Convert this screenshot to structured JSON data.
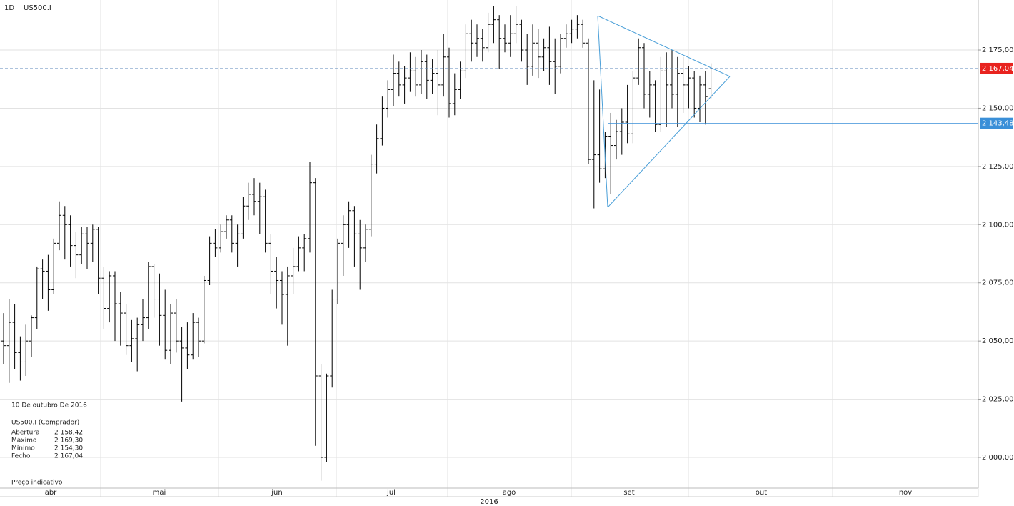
{
  "chart_data": {
    "type": "ohlc",
    "period": "1D",
    "symbol": "US500.I",
    "ylim": [
      1986.8,
      2196.5
    ],
    "yticks": [
      {
        "value": 2000,
        "label": "2 000,00"
      },
      {
        "value": 2025,
        "label": "2 025,00"
      },
      {
        "value": 2050,
        "label": "2 050,00"
      },
      {
        "value": 2075,
        "label": "2 075,00"
      },
      {
        "value": 2100,
        "label": "2 100,00"
      },
      {
        "value": 2125,
        "label": "2 125,00"
      },
      {
        "value": 2150,
        "label": "2 150,00"
      },
      {
        "value": 2175,
        "label": "2 175,00"
      }
    ],
    "grid": true,
    "months": [
      "abr",
      "mai",
      "jun",
      "jul",
      "ago",
      "set",
      "out",
      "nov"
    ],
    "year": "2016",
    "color": "#000000",
    "current_price": {
      "value": 2167.04,
      "label": "2 167,04",
      "color": "#e8231f"
    },
    "level_line": {
      "value": 2143.48,
      "label": "2 143,48",
      "color": "#3a8fd8"
    },
    "ohlc": [
      [
        2050,
        2062,
        2040,
        2048
      ],
      [
        2048,
        2068,
        2032,
        2058
      ],
      [
        2058,
        2066,
        2038,
        2045
      ],
      [
        2045,
        2052,
        2033,
        2041
      ],
      [
        2041,
        2057,
        2035,
        2050
      ],
      [
        2050,
        2061,
        2043,
        2060
      ],
      [
        2060,
        2082,
        2055,
        2081
      ],
      [
        2081,
        2085,
        2068,
        2080
      ],
      [
        2080,
        2087,
        2063,
        2072
      ],
      [
        2072,
        2094,
        2070,
        2092
      ],
      [
        2092,
        2110,
        2089,
        2104
      ],
      [
        2104,
        2108,
        2085,
        2100
      ],
      [
        2100,
        2104,
        2082,
        2091
      ],
      [
        2091,
        2097,
        2077,
        2087
      ],
      [
        2087,
        2099,
        2083,
        2096
      ],
      [
        2096,
        2099,
        2081,
        2092
      ],
      [
        2092,
        2100,
        2084,
        2098
      ],
      [
        2098,
        2099,
        2070,
        2077
      ],
      [
        2077,
        2082,
        2055,
        2064
      ],
      [
        2064,
        2080,
        2058,
        2078
      ],
      [
        2078,
        2080,
        2050,
        2066
      ],
      [
        2066,
        2071,
        2048,
        2062
      ],
      [
        2062,
        2066,
        2044,
        2048
      ],
      [
        2048,
        2059,
        2041,
        2051
      ],
      [
        2051,
        2060,
        2037,
        2057
      ],
      [
        2057,
        2068,
        2050,
        2060
      ],
      [
        2060,
        2084,
        2055,
        2082
      ],
      [
        2082,
        2083,
        2060,
        2068
      ],
      [
        2068,
        2079,
        2048,
        2061
      ],
      [
        2061,
        2072,
        2042,
        2046
      ],
      [
        2046,
        2066,
        2040,
        2062
      ],
      [
        2062,
        2068,
        2045,
        2050
      ],
      [
        2050,
        2056,
        2024,
        2047
      ],
      [
        2047,
        2058,
        2038,
        2044
      ],
      [
        2044,
        2062,
        2042,
        2058
      ],
      [
        2058,
        2060,
        2043,
        2050
      ],
      [
        2050,
        2078,
        2049,
        2076
      ],
      [
        2076,
        2095,
        2074,
        2092
      ],
      [
        2092,
        2098,
        2086,
        2090
      ],
      [
        2090,
        2100,
        2088,
        2097
      ],
      [
        2097,
        2104,
        2094,
        2102
      ],
      [
        2102,
        2104,
        2088,
        2092
      ],
      [
        2092,
        2100,
        2082,
        2096
      ],
      [
        2096,
        2112,
        2094,
        2108
      ],
      [
        2108,
        2118,
        2102,
        2113
      ],
      [
        2113,
        2120,
        2104,
        2110
      ],
      [
        2110,
        2118,
        2096,
        2112
      ],
      [
        2112,
        2115,
        2088,
        2092
      ],
      [
        2092,
        2096,
        2070,
        2080
      ],
      [
        2080,
        2086,
        2064,
        2076
      ],
      [
        2076,
        2080,
        2057,
        2070
      ],
      [
        2070,
        2082,
        2048,
        2078
      ],
      [
        2078,
        2090,
        2070,
        2082
      ],
      [
        2082,
        2095,
        2080,
        2090
      ],
      [
        2090,
        2096,
        2080,
        2094
      ],
      [
        2094,
        2127,
        2088,
        2118
      ],
      [
        2118,
        2120,
        2005,
        2035
      ],
      [
        2035,
        2040,
        1990,
        2000
      ],
      [
        2000,
        2036,
        1998,
        2035
      ],
      [
        2035,
        2072,
        2030,
        2068
      ],
      [
        2068,
        2094,
        2066,
        2092
      ],
      [
        2092,
        2104,
        2078,
        2100
      ],
      [
        2100,
        2110,
        2090,
        2106
      ],
      [
        2106,
        2108,
        2082,
        2096
      ],
      [
        2096,
        2102,
        2072,
        2090
      ],
      [
        2090,
        2100,
        2084,
        2098
      ],
      [
        2098,
        2130,
        2095,
        2126
      ],
      [
        2126,
        2143,
        2122,
        2137
      ],
      [
        2137,
        2155,
        2134,
        2150
      ],
      [
        2150,
        2162,
        2146,
        2158
      ],
      [
        2158,
        2173,
        2151,
        2165
      ],
      [
        2165,
        2170,
        2155,
        2160
      ],
      [
        2160,
        2168,
        2152,
        2163
      ],
      [
        2163,
        2174,
        2157,
        2166
      ],
      [
        2166,
        2172,
        2155,
        2160
      ],
      [
        2160,
        2175,
        2156,
        2170
      ],
      [
        2170,
        2173,
        2154,
        2162
      ],
      [
        2162,
        2171,
        2156,
        2165
      ],
      [
        2165,
        2175,
        2147,
        2160
      ],
      [
        2160,
        2182,
        2155,
        2172
      ],
      [
        2172,
        2176,
        2146,
        2152
      ],
      [
        2152,
        2165,
        2147,
        2158
      ],
      [
        2158,
        2170,
        2154,
        2166
      ],
      [
        2166,
        2186,
        2163,
        2182
      ],
      [
        2182,
        2188,
        2170,
        2178
      ],
      [
        2178,
        2186,
        2172,
        2180
      ],
      [
        2180,
        2184,
        2170,
        2176
      ],
      [
        2176,
        2191,
        2174,
        2186
      ],
      [
        2186,
        2194,
        2178,
        2188
      ],
      [
        2188,
        2190,
        2167,
        2180
      ],
      [
        2180,
        2186,
        2174,
        2178
      ],
      [
        2178,
        2190,
        2172,
        2182
      ],
      [
        2182,
        2194,
        2178,
        2186
      ],
      [
        2186,
        2188,
        2170,
        2175
      ],
      [
        2175,
        2182,
        2160,
        2168
      ],
      [
        2168,
        2186,
        2164,
        2178
      ],
      [
        2178,
        2184,
        2163,
        2172
      ],
      [
        2172,
        2180,
        2166,
        2176
      ],
      [
        2176,
        2185,
        2160,
        2170
      ],
      [
        2170,
        2180,
        2156,
        2168
      ],
      [
        2168,
        2182,
        2165,
        2180
      ],
      [
        2180,
        2186,
        2176,
        2182
      ],
      [
        2182,
        2188,
        2178,
        2184
      ],
      [
        2184,
        2190,
        2180,
        2186
      ],
      [
        2186,
        2188,
        2176,
        2178
      ],
      [
        2178,
        2180,
        2126,
        2128
      ],
      [
        2128,
        2162,
        2107,
        2130
      ],
      [
        2130,
        2158,
        2118,
        2124
      ],
      [
        2124,
        2140,
        2120,
        2138
      ],
      [
        2138,
        2148,
        2113,
        2134
      ],
      [
        2134,
        2145,
        2128,
        2140
      ],
      [
        2140,
        2150,
        2130,
        2144
      ],
      [
        2144,
        2160,
        2135,
        2139
      ],
      [
        2139,
        2166,
        2135,
        2163
      ],
      [
        2163,
        2180,
        2160,
        2176
      ],
      [
        2176,
        2178,
        2150,
        2156
      ],
      [
        2156,
        2166,
        2146,
        2160
      ],
      [
        2160,
        2162,
        2140,
        2143
      ],
      [
        2143,
        2172,
        2140,
        2166
      ],
      [
        2166,
        2174,
        2142,
        2160
      ],
      [
        2160,
        2175,
        2150,
        2156
      ],
      [
        2156,
        2172,
        2142,
        2165
      ],
      [
        2165,
        2172,
        2148,
        2160
      ],
      [
        2160,
        2168,
        2150,
        2163
      ],
      [
        2163,
        2166,
        2146,
        2150
      ],
      [
        2150,
        2164,
        2144,
        2160
      ],
      [
        2160,
        2166,
        2143,
        2155
      ],
      [
        2158.42,
        2169.3,
        2154.3,
        2167.04
      ]
    ],
    "info_box": {
      "date": "10 De outubro De 2016",
      "symbol": "US500.I (Comprador)",
      "rows": [
        [
          "Abertura",
          "2 158,42"
        ],
        [
          "Máximo",
          "2 169,30"
        ],
        [
          "Mínimo",
          "2 154,30"
        ],
        [
          "Fecho",
          "2 167,04"
        ]
      ],
      "note": "Preço indicativo"
    }
  }
}
